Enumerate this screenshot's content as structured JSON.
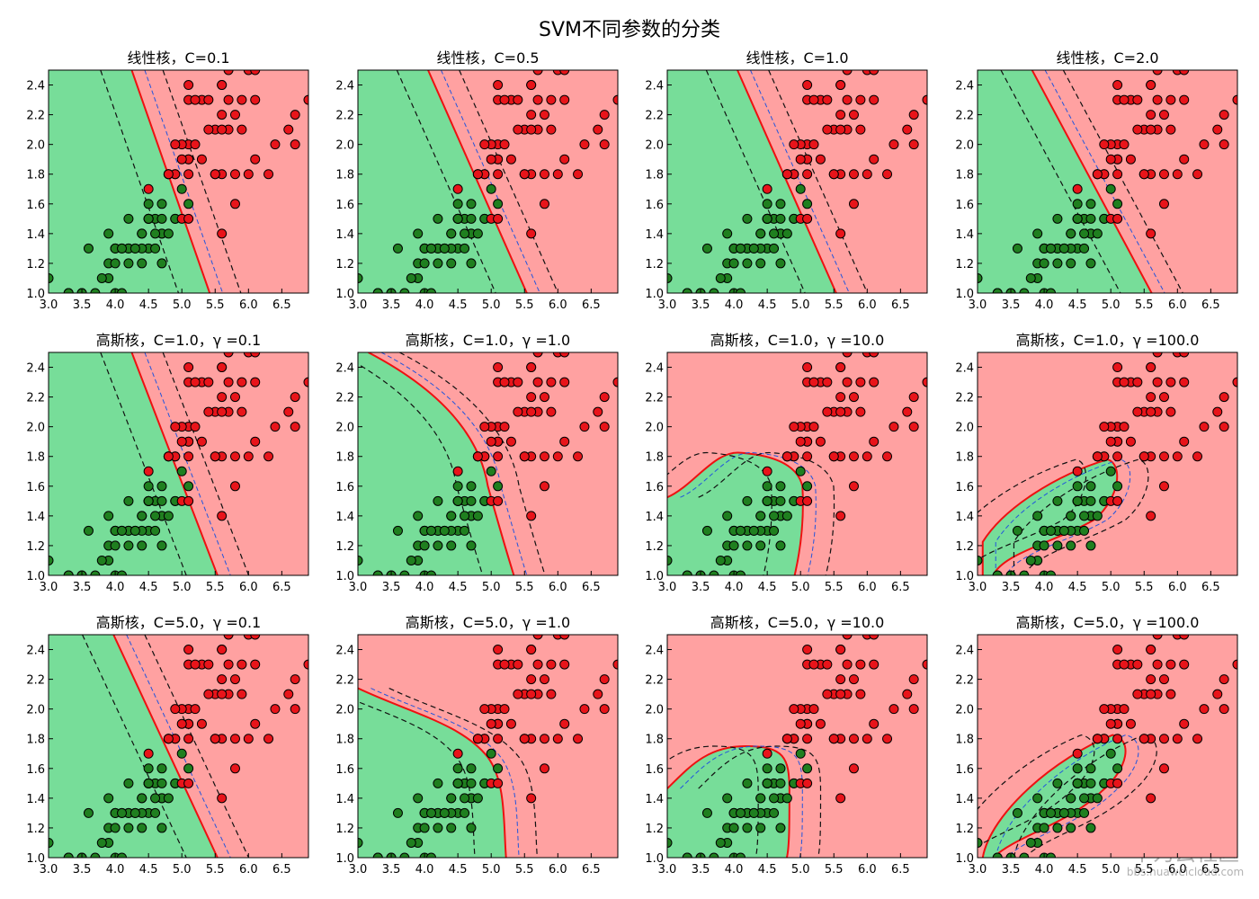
{
  "chart_data": {
    "type": "scatter",
    "title": "SVM不同参数的分类",
    "panels": [
      {
        "title": "线性核，C=0.1"
      },
      {
        "title": "线性核，C=0.5"
      },
      {
        "title": "线性核，C=1.0"
      },
      {
        "title": "线性核，C=2.0"
      },
      {
        "title": "高斯核，C=1.0，γ =0.1"
      },
      {
        "title": "高斯核，C=1.0，γ =1.0"
      },
      {
        "title": "高斯核，C=1.0，γ =10.0"
      },
      {
        "title": "高斯核，C=1.0，γ =100.0"
      },
      {
        "title": "高斯核，C=5.0，γ =0.1"
      },
      {
        "title": "高斯核，C=5.0，γ =1.0"
      },
      {
        "title": "高斯核，C=5.0，γ =10.0"
      },
      {
        "title": "高斯核，C=5.0，γ =100.0"
      }
    ],
    "xlim": [
      3.0,
      6.9
    ],
    "ylim": [
      1.0,
      2.5
    ],
    "xticks": [
      {
        "value": 3.0,
        "label": "3.0"
      },
      {
        "value": 3.5,
        "label": "3.5"
      },
      {
        "value": 4.0,
        "label": "4.0"
      },
      {
        "value": 4.5,
        "label": "4.5"
      },
      {
        "value": 5.0,
        "label": "5.0"
      },
      {
        "value": 5.5,
        "label": "5.5"
      },
      {
        "value": 6.0,
        "label": "6.0"
      },
      {
        "value": 6.5,
        "label": "6.5"
      }
    ],
    "yticks": [
      {
        "value": 1.0,
        "label": "1.0"
      },
      {
        "value": 1.2,
        "label": "1.2"
      },
      {
        "value": 1.4,
        "label": "1.4"
      },
      {
        "value": 1.6,
        "label": "1.6"
      },
      {
        "value": 1.8,
        "label": "1.8"
      },
      {
        "value": 2.0,
        "label": "2.0"
      },
      {
        "value": 2.2,
        "label": "2.2"
      },
      {
        "value": 2.4,
        "label": "2.4"
      }
    ],
    "series": [
      {
        "color": "#1f7f1f",
        "x": [
          4.7,
          4.5,
          4.9,
          4.0,
          4.6,
          4.5,
          4.7,
          3.3,
          4.6,
          3.9,
          3.5,
          4.2,
          4.0,
          4.7,
          3.6,
          4.4,
          4.5,
          4.1,
          4.5,
          3.9,
          4.8,
          4.0,
          4.9,
          4.7,
          4.3,
          4.4,
          4.8,
          5.0,
          4.5,
          3.5,
          3.8,
          3.7,
          3.9,
          5.1,
          4.5,
          4.5,
          4.7,
          4.4,
          4.1,
          4.0,
          4.4,
          4.6,
          4.0,
          3.3,
          4.2,
          4.2,
          4.2,
          4.3,
          3.0,
          4.1
        ],
        "y": [
          1.4,
          1.5,
          1.5,
          1.3,
          1.5,
          1.3,
          1.6,
          1.0,
          1.3,
          1.4,
          1.0,
          1.5,
          1.0,
          1.4,
          1.3,
          1.4,
          1.5,
          1.0,
          1.5,
          1.1,
          1.8,
          1.3,
          1.5,
          1.2,
          1.3,
          1.4,
          1.4,
          1.7,
          1.5,
          1.0,
          1.1,
          1.0,
          1.2,
          1.6,
          1.5,
          1.6,
          1.5,
          1.3,
          1.3,
          1.3,
          1.2,
          1.4,
          1.2,
          1.0,
          1.3,
          1.2,
          1.3,
          1.3,
          1.1,
          1.3
        ]
      },
      {
        "color": "#e8141a",
        "x": [
          6.0,
          5.1,
          5.9,
          5.6,
          5.8,
          6.6,
          4.5,
          6.3,
          5.8,
          6.1,
          5.1,
          5.3,
          5.5,
          5.0,
          5.1,
          5.3,
          5.5,
          6.7,
          6.9,
          5.0,
          5.7,
          4.9,
          6.7,
          4.9,
          5.7,
          6.0,
          4.8,
          4.9,
          5.6,
          5.8,
          6.1,
          6.4,
          5.6,
          5.1,
          5.6,
          6.1,
          5.6,
          5.5,
          4.8,
          5.4,
          5.6,
          5.1,
          5.1,
          5.9,
          5.7,
          5.2,
          5.0,
          5.2,
          5.4,
          5.1
        ],
        "y": [
          2.5,
          1.9,
          2.1,
          1.8,
          2.2,
          2.1,
          1.7,
          1.8,
          1.8,
          2.5,
          2.0,
          1.9,
          2.1,
          2.0,
          2.4,
          2.3,
          1.8,
          2.2,
          2.3,
          1.5,
          2.3,
          2.0,
          2.0,
          1.8,
          2.1,
          1.8,
          1.8,
          1.8,
          2.1,
          1.6,
          1.9,
          2.0,
          2.2,
          1.5,
          1.4,
          2.3,
          2.4,
          1.8,
          1.8,
          2.1,
          2.4,
          2.3,
          1.9,
          2.3,
          2.5,
          2.3,
          1.9,
          2.0,
          2.3,
          1.8
        ]
      }
    ],
    "watermark": "华为云社区",
    "watermark_url": "bbs.huaweicloud.com"
  }
}
